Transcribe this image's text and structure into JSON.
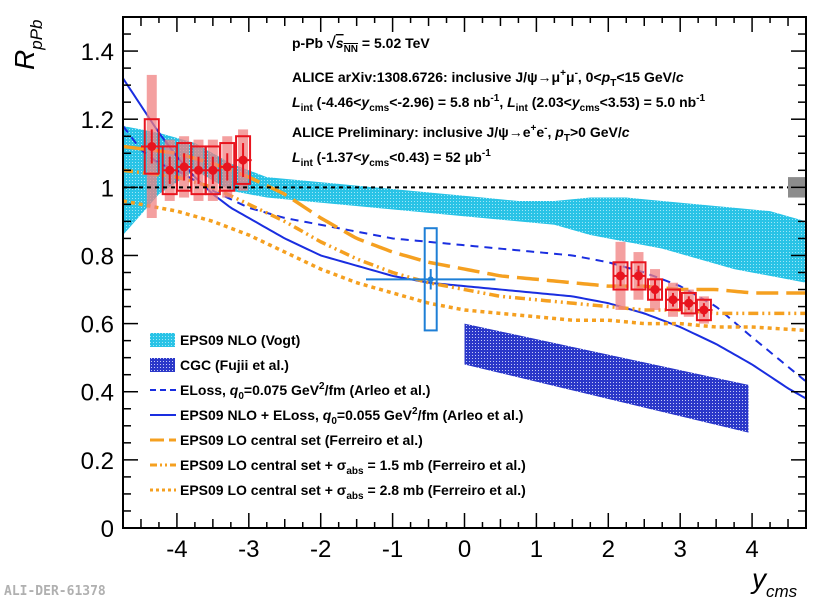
{
  "chart_data": {
    "type": "scatter",
    "title": "",
    "xlabel": "y",
    "xlabel_sub": "cms",
    "ylabel": "R",
    "ylabel_sub": "pPb",
    "xlim": [
      -4.75,
      4.75
    ],
    "ylim": [
      0,
      1.5
    ],
    "xticks": [
      "-4",
      "-3",
      "-2",
      "-1",
      "0",
      "1",
      "2",
      "3",
      "4"
    ],
    "xtick_values": [
      -4,
      -3,
      -2,
      -1,
      0,
      1,
      2,
      3,
      4
    ],
    "yticks": [
      "0",
      "0.2",
      "0.4",
      "0.6",
      "0.8",
      "1",
      "1.2",
      "1.4"
    ],
    "ytick_values": [
      0,
      0.2,
      0.4,
      0.6,
      0.8,
      1.0,
      1.2,
      1.4
    ],
    "reference_line": 1.0,
    "global_uncertainty": {
      "y": 1.0,
      "half_height": 0.03,
      "color": "#8c8c8c"
    },
    "annotations": {
      "system": "p-Pb √s_NN = 5.02 TeV",
      "system_pre": "p-Pb ",
      "system_sqrt_s": "s",
      "system_sub": "NN",
      "system_post": " = 5.02 TeV",
      "ref1_a": "ALICE arXiv:1308.6726: inclusive J/ψ→μ",
      "ref1_sup1": "+",
      "ref1_b": "μ",
      "ref1_sup2": "-",
      "ref1_c": ", 0<",
      "ref1_p": "p",
      "ref1_psub": "T",
      "ref1_d": "<15 GeV/",
      "ref1_e": "c",
      "lumi1_L": "L",
      "lumi1_Lsub": "int",
      "lumi1_a": " (-4.46<",
      "lumi1_y": "y",
      "lumi1_ysub": "cms",
      "lumi1_b": "<-2.96) = 5.8 nb",
      "lumi1_sup": "-1",
      "lumi1_c": ", ",
      "lumi1_L2": "L",
      "lumi1_L2sub": "int",
      "lumi1_d": " (2.03<",
      "lumi1_y2": "y",
      "lumi1_y2sub": "cms",
      "lumi1_e": "<3.53) = 5.0 nb",
      "lumi1_sup2": "-1",
      "ref2_a": "ALICE Preliminary: inclusive J/ψ→e",
      "ref2_sup1": "+",
      "ref2_b": "e",
      "ref2_sup2": "-",
      "ref2_c": ", ",
      "ref2_p": "p",
      "ref2_psub": "T",
      "ref2_d": ">0 GeV/",
      "ref2_e": "c",
      "lumi2_L": "L",
      "lumi2_Lsub": "int",
      "lumi2_a": " (-1.37<",
      "lumi2_y": "y",
      "lumi2_ysub": "cms",
      "lumi2_b": "<0.43) = 52 μb",
      "lumi2_sup": "-1"
    },
    "legend": {
      "position": "bottom-left",
      "entries": [
        {
          "key": "eps09",
          "label": "EPS09 NLO (Vogt)",
          "style": "band",
          "color": "#29c3e6"
        },
        {
          "key": "cgc",
          "label": "CGC (Fujii et al.)",
          "style": "band",
          "color": "#2b38c9"
        },
        {
          "key": "eloss",
          "label_a": "ELoss, ",
          "label_q": "q",
          "label_qsub": "0",
          "label_b": "=0.075 GeV",
          "label_sup": "2",
          "label_c": "/fm (Arleo et al.)",
          "style": "dashed",
          "color": "#1a2ee0"
        },
        {
          "key": "eps09eloss",
          "label_a": "EPS09 NLO + ELoss, ",
          "label_q": "q",
          "label_qsub": "0",
          "label_b": "=0.055 GeV",
          "label_sup": "2",
          "label_c": "/fm (Arleo et al.)",
          "style": "solid",
          "color": "#1a2ee0"
        },
        {
          "key": "lo",
          "label": "EPS09 LO central set (Ferreiro et al.)",
          "style": "longdash",
          "color": "#f5a020"
        },
        {
          "key": "lo15",
          "label_a": "EPS09 LO central set + σ",
          "label_sub": "abs",
          "label_b": " = 1.5 mb (Ferreiro et al.)",
          "style": "dashdot",
          "color": "#f5a020"
        },
        {
          "key": "lo28",
          "label_a": "EPS09 LO central set + σ",
          "label_sub": "abs",
          "label_b": " = 2.8 mb (Ferreiro et al.)",
          "style": "dotted",
          "color": "#f5a020"
        }
      ]
    },
    "series": [
      {
        "name": "EPS09 NLO (Vogt)",
        "type": "band",
        "color": "#29c3e6",
        "x": [
          -4.75,
          -4.25,
          -3.75,
          -3.25,
          -2.75,
          -2.25,
          -1.75,
          -1.25,
          -0.75,
          -0.25,
          0.25,
          0.75,
          1.25,
          1.75,
          2.25,
          2.75,
          3.25,
          3.75,
          4.25,
          4.75
        ],
        "upper": [
          1.18,
          1.16,
          1.13,
          1.07,
          1.03,
          1.02,
          1.01,
          1.0,
          0.99,
          0.98,
          0.97,
          0.96,
          0.96,
          0.97,
          0.97,
          0.96,
          0.95,
          0.94,
          0.93,
          0.9
        ],
        "lower": [
          0.86,
          0.98,
          1.05,
          0.99,
          0.97,
          0.96,
          0.95,
          0.94,
          0.93,
          0.92,
          0.91,
          0.9,
          0.89,
          0.86,
          0.84,
          0.82,
          0.79,
          0.76,
          0.74,
          0.72
        ]
      },
      {
        "name": "CGC (Fujii et al.)",
        "type": "band",
        "color": "#2b38c9",
        "x": [
          0.0,
          3.95
        ],
        "upper": [
          0.6,
          0.42
        ],
        "lower": [
          0.48,
          0.28
        ]
      },
      {
        "name": "ELoss q0=0.075",
        "type": "line",
        "style": "dashed",
        "color": "#1a2ee0",
        "x": [
          -4.75,
          -4.5,
          -4.25,
          -4.0,
          -3.75,
          -3.5,
          -3.0,
          -2.5,
          -2.0,
          -1.5,
          -1.0,
          -0.5,
          0.0,
          0.5,
          1.0,
          1.5,
          2.0,
          2.5,
          3.0,
          3.5,
          4.0,
          4.75
        ],
        "y": [
          1.18,
          1.11,
          1.07,
          1.05,
          1.02,
          0.99,
          0.94,
          0.91,
          0.89,
          0.87,
          0.85,
          0.84,
          0.83,
          0.82,
          0.81,
          0.8,
          0.78,
          0.75,
          0.71,
          0.65,
          0.56,
          0.43
        ]
      },
      {
        "name": "EPS09 NLO + ELoss q0=0.055",
        "type": "line",
        "style": "solid",
        "color": "#1a2ee0",
        "x": [
          -4.75,
          -4.5,
          -4.25,
          -4.0,
          -3.75,
          -3.5,
          -3.25,
          -3.0,
          -2.75,
          -2.5,
          -2.0,
          -1.5,
          -1.0,
          -0.5,
          0.0,
          0.5,
          1.0,
          1.5,
          2.0,
          2.5,
          3.0,
          3.5,
          4.0,
          4.5,
          4.75
        ],
        "y": [
          1.32,
          1.24,
          1.16,
          1.09,
          1.03,
          0.98,
          0.94,
          0.91,
          0.88,
          0.85,
          0.8,
          0.77,
          0.74,
          0.72,
          0.71,
          0.7,
          0.69,
          0.68,
          0.66,
          0.63,
          0.59,
          0.54,
          0.48,
          0.41,
          0.38
        ]
      },
      {
        "name": "EPS09 LO central set",
        "type": "line",
        "style": "longdash",
        "color": "#f5a020",
        "x": [
          -4.75,
          -4.0,
          -3.5,
          -3.0,
          -2.5,
          -2.0,
          -1.5,
          -1.0,
          -0.5,
          0.0,
          0.5,
          1.0,
          1.5,
          2.0,
          2.5,
          3.0,
          3.5,
          4.0,
          4.75
        ],
        "y": [
          1.12,
          1.1,
          1.07,
          1.03,
          0.98,
          0.91,
          0.85,
          0.81,
          0.78,
          0.76,
          0.74,
          0.73,
          0.72,
          0.71,
          0.71,
          0.7,
          0.7,
          0.69,
          0.69
        ]
      },
      {
        "name": "EPS09 LO + sigma_abs 1.5 mb",
        "type": "line",
        "style": "dashdot",
        "color": "#f5a020",
        "x": [
          -4.75,
          -4.0,
          -3.5,
          -3.0,
          -2.5,
          -2.0,
          -1.5,
          -1.0,
          -0.5,
          0.0,
          0.5,
          1.0,
          1.5,
          2.0,
          2.5,
          3.0,
          3.5,
          4.0,
          4.75
        ],
        "y": [
          1.05,
          1.03,
          1.0,
          0.95,
          0.9,
          0.84,
          0.79,
          0.75,
          0.72,
          0.7,
          0.68,
          0.67,
          0.66,
          0.65,
          0.64,
          0.64,
          0.63,
          0.63,
          0.63
        ]
      },
      {
        "name": "EPS09 LO + sigma_abs 2.8 mb",
        "type": "line",
        "style": "dotted",
        "color": "#f5a020",
        "x": [
          -4.75,
          -4.0,
          -3.5,
          -3.0,
          -2.5,
          -2.0,
          -1.5,
          -1.0,
          -0.5,
          0.0,
          0.5,
          1.0,
          1.5,
          2.0,
          2.5,
          3.0,
          3.5,
          4.0,
          4.75
        ],
        "y": [
          0.96,
          0.93,
          0.9,
          0.86,
          0.81,
          0.76,
          0.72,
          0.69,
          0.66,
          0.64,
          0.63,
          0.62,
          0.61,
          0.61,
          0.6,
          0.6,
          0.59,
          0.59,
          0.58
        ]
      },
      {
        "name": "ALICE J/psi -> mu+mu- (backward)",
        "type": "points",
        "color": "#e8141e",
        "x": [
          -4.35,
          -4.1,
          -3.9,
          -3.7,
          -3.5,
          -3.3,
          -3.08
        ],
        "y": [
          1.12,
          1.05,
          1.06,
          1.05,
          1.05,
          1.06,
          1.08
        ],
        "xerr": [
          0.15,
          0.1,
          0.1,
          0.1,
          0.1,
          0.1,
          0.12
        ],
        "yerr": [
          0.05,
          0.04,
          0.04,
          0.04,
          0.04,
          0.04,
          0.05
        ],
        "sys_box": [
          0.08,
          0.07,
          0.07,
          0.07,
          0.07,
          0.07,
          0.07
        ],
        "corr_band": [
          0.21,
          0.09,
          0.09,
          0.09,
          0.09,
          0.09,
          0.09
        ]
      },
      {
        "name": "ALICE J/psi -> mu+mu- (forward)",
        "type": "points",
        "color": "#e8141e",
        "x": [
          2.17,
          2.42,
          2.65,
          2.9,
          3.12,
          3.33
        ],
        "y": [
          0.74,
          0.74,
          0.7,
          0.67,
          0.66,
          0.64
        ],
        "xerr": [
          0.1,
          0.1,
          0.1,
          0.1,
          0.1,
          0.12
        ],
        "yerr": [
          0.03,
          0.03,
          0.03,
          0.02,
          0.02,
          0.02
        ],
        "sys_box": [
          0.04,
          0.04,
          0.03,
          0.03,
          0.03,
          0.03
        ],
        "corr_band": [
          0.1,
          0.07,
          0.06,
          0.05,
          0.04,
          0.04
        ]
      },
      {
        "name": "ALICE Preliminary J/psi -> e+e-",
        "type": "points",
        "color": "#1e7fd6",
        "x": [
          -0.47
        ],
        "y": [
          0.73
        ],
        "xerr": [
          0.9
        ],
        "yerr": [
          0.03
        ],
        "sys_box": [
          0.15
        ]
      }
    ]
  },
  "footer": "ALI-DER-61378"
}
